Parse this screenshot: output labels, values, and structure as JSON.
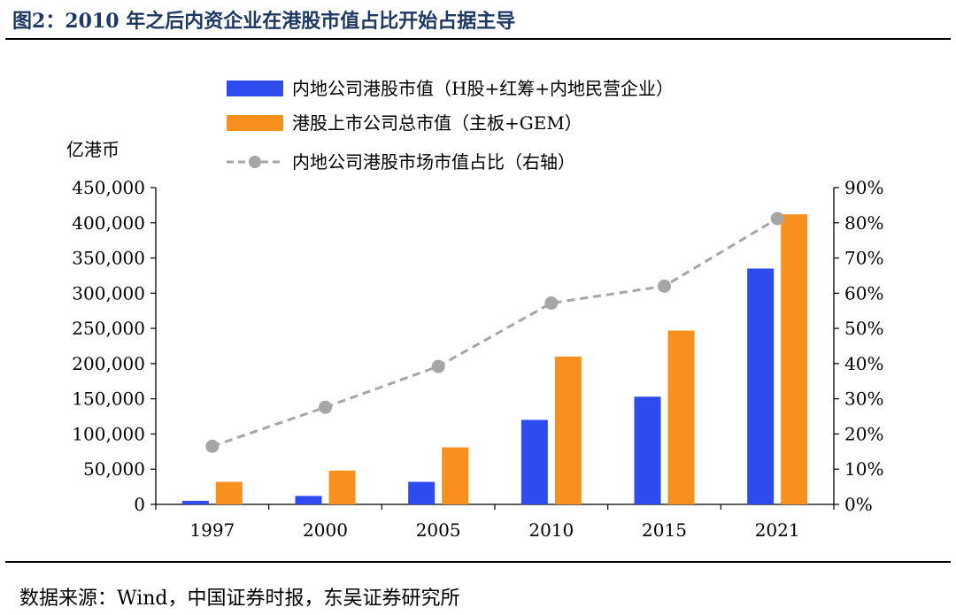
{
  "figure": {
    "title": "图2：2010 年之后内资企业在港股市值占比开始占据主导",
    "source": "数据来源：Wind，中国证券时报，东吴证券研究所"
  },
  "chart_data": {
    "type": "bar",
    "title": "2010 年之后内资企业在港股市值占比开始占据主导",
    "categories": [
      "1997",
      "2000",
      "2005",
      "2010",
      "2015",
      "2021"
    ],
    "y_left_label": "亿港币",
    "y_left_range": [
      0,
      450000
    ],
    "y_left_ticks": [
      "0",
      "50,000",
      "100,000",
      "150,000",
      "200,000",
      "250,000",
      "300,000",
      "350,000",
      "400,000",
      "450,000"
    ],
    "y_right_range": [
      0,
      0.9
    ],
    "y_right_ticks": [
      "0%",
      "10%",
      "20%",
      "30%",
      "40%",
      "50%",
      "60%",
      "70%",
      "80%",
      "90%"
    ],
    "series": [
      {
        "name": "内地公司港股市值（H股+红筹+内地民营企业）",
        "type": "bar",
        "axis": "left",
        "color": "#2e4bf0",
        "values": [
          5000,
          12000,
          32000,
          120000,
          153000,
          335000
        ]
      },
      {
        "name": "港股上市公司总市值（主板+GEM）",
        "type": "bar",
        "axis": "left",
        "color": "#f7901e",
        "values": [
          32000,
          48000,
          81000,
          210000,
          247000,
          412000
        ]
      },
      {
        "name": "内地公司港股市场市值占比（右轴）",
        "type": "line",
        "axis": "right",
        "color": "#a6a6a6",
        "values": [
          0.165,
          0.276,
          0.392,
          0.572,
          0.62,
          0.812
        ]
      }
    ]
  }
}
